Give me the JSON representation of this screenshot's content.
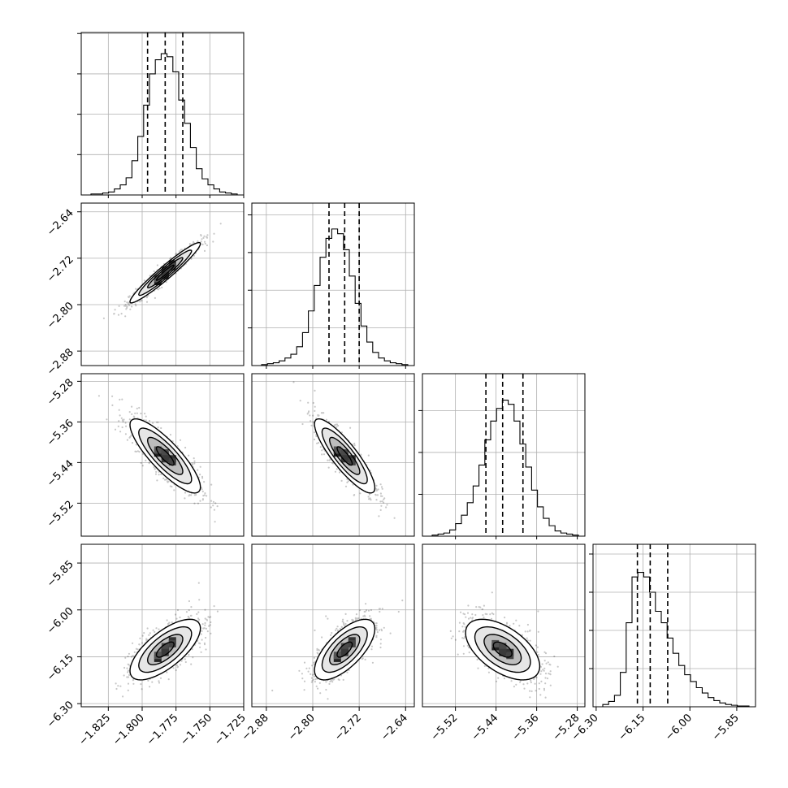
{
  "chart_data": {
    "type": "corner",
    "title": "",
    "grid": true,
    "parameters": [
      {
        "range": [
          -1.845,
          -1.725
        ],
        "median": -1.783,
        "q16": -1.796,
        "q84": -1.77,
        "ticks": [
          "−1.825",
          "−1.800",
          "−1.775",
          "−1.750",
          "−1.725"
        ],
        "tick_values": [
          -1.825,
          -1.8,
          -1.775,
          -1.75,
          -1.725
        ],
        "hist_counts": [
          1,
          1,
          2,
          3,
          6,
          10,
          17,
          34,
          58,
          89,
          120,
          134,
          140,
          137,
          122,
          94,
          71,
          47,
          26,
          16,
          10,
          6,
          3,
          2,
          1
        ],
        "hist_peak_norm": 140
      },
      {
        "range": [
          -2.905,
          -2.625
        ],
        "median": -2.745,
        "q16": -2.772,
        "q84": -2.72,
        "ticks": [
          "−2.88",
          "−2.80",
          "−2.72",
          "−2.64"
        ],
        "tick_values": [
          -2.88,
          -2.8,
          -2.72,
          -2.64
        ],
        "hist_counts": [
          1,
          2,
          3,
          5,
          8,
          12,
          20,
          35,
          58,
          85,
          115,
          135,
          145,
          140,
          123,
          95,
          66,
          42,
          25,
          14,
          8,
          5,
          3,
          2,
          1
        ],
        "hist_peak_norm": 150
      },
      {
        "range": [
          -5.585,
          -5.265
        ],
        "median": -5.427,
        "q16": -5.46,
        "q84": -5.387,
        "ticks": [
          "−5.52",
          "−5.44",
          "−5.36",
          "−5.28"
        ],
        "tick_values": [
          -5.52,
          -5.44,
          -5.36,
          -5.28
        ],
        "hist_counts": [
          1,
          2,
          3,
          6,
          12,
          20,
          32,
          48,
          68,
          92,
          110,
          122,
          130,
          126,
          110,
          88,
          66,
          44,
          28,
          17,
          10,
          5,
          3,
          2,
          1
        ],
        "hist_peak_norm": 135
      },
      {
        "range": [
          -6.31,
          -5.79
        ],
        "median": -6.127,
        "q16": -6.168,
        "q84": -6.071,
        "ticks": [
          "−6.30",
          "−6.15",
          "−6.00",
          "−5.85"
        ],
        "tick_values": [
          -6.3,
          -6.15,
          -6.0,
          -5.85
        ],
        "hist_counts": [
          3,
          7,
          15,
          45,
          110,
          170,
          176,
          170,
          150,
          125,
          110,
          90,
          70,
          54,
          42,
          33,
          25,
          18,
          12,
          8,
          5,
          3,
          2,
          1,
          1
        ],
        "hist_peak_norm": 185
      }
    ],
    "pairs": [
      {
        "row": 1,
        "col": 0,
        "rho": 0.96
      },
      {
        "row": 2,
        "col": 0,
        "rho": -0.84
      },
      {
        "row": 2,
        "col": 1,
        "rho": -0.86
      },
      {
        "row": 3,
        "col": 0,
        "rho": 0.7
      },
      {
        "row": 3,
        "col": 1,
        "rho": 0.68
      },
      {
        "row": 3,
        "col": 2,
        "rho": -0.55
      }
    ],
    "colors": {
      "density": "#000000",
      "contour": "#000000",
      "grid": "#b0b0b0",
      "scatter": "#000000",
      "quantile_line": "#000000"
    }
  }
}
